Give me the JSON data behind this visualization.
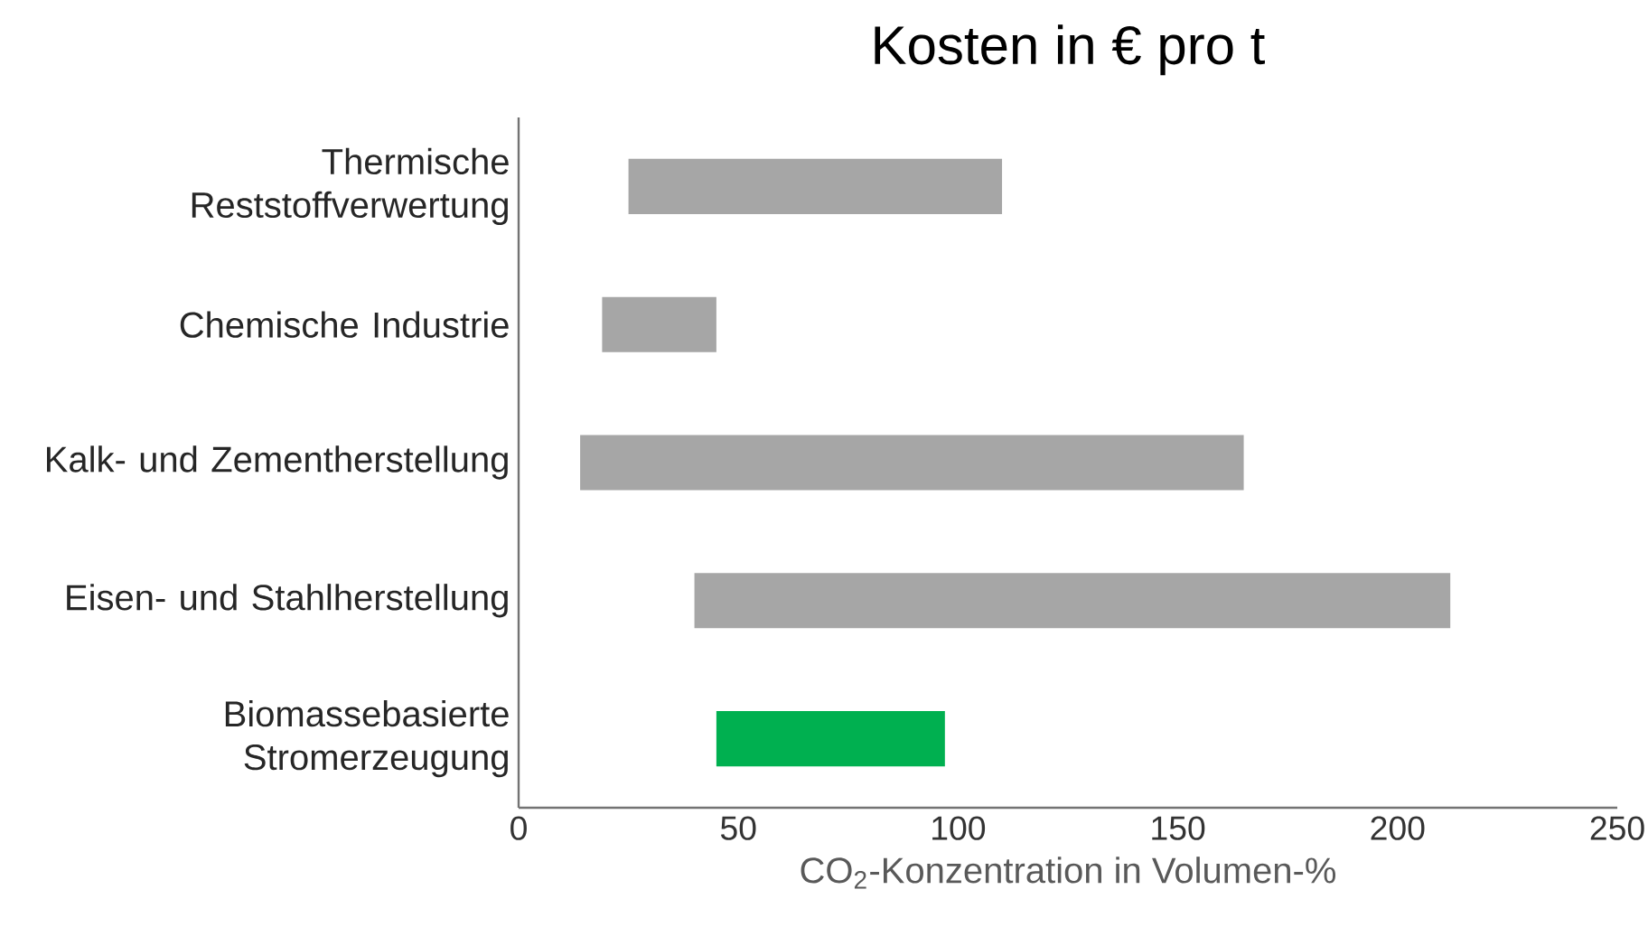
{
  "chart_data": {
    "type": "bar",
    "orientation": "horizontal",
    "title": "Kosten in € pro t",
    "xlabel": "CO$_{2}$-Konzentration in Volumen-%",
    "categories": [
      "Thermische Reststoffverwertung",
      "Chemische Industrie",
      "Kalk- und Zementherstellung",
      "Eisen- und Stahlherstellung",
      "Biomassebasierte Stromerzeugung"
    ],
    "base": [
      25,
      19,
      14,
      40,
      45
    ],
    "values": [
      85,
      26,
      151,
      172,
      52
    ],
    "colors": [
      "#a6a6a6",
      "#a6a6a6",
      "#a6a6a6",
      "#a6a6a6",
      "#00b050"
    ],
    "xlim": [
      0,
      250
    ],
    "xticks": [
      0,
      50,
      100,
      150,
      200,
      250
    ],
    "grid": false
  }
}
